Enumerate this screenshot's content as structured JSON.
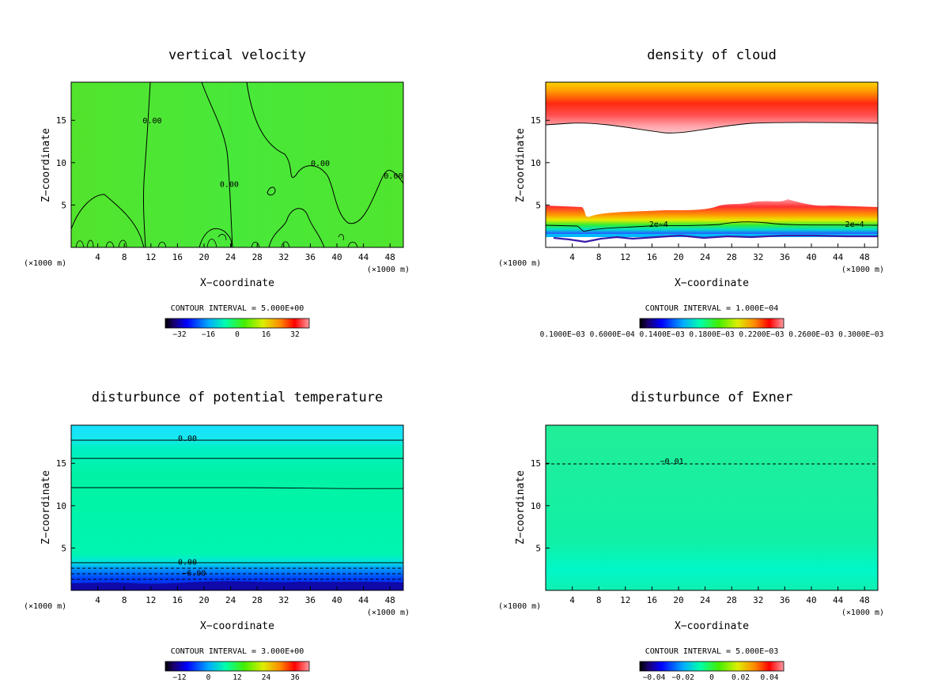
{
  "chart_data": [
    {
      "type": "heatmap",
      "title": "vertical velocity",
      "xlabel": "X−coordinate",
      "ylabel": "Z−coordinate",
      "x_unit_left": "(×1000 m)",
      "x_unit_right": "(×1000 m)",
      "xlim": [
        0,
        50
      ],
      "ylim": [
        0,
        19.5
      ],
      "x_ticks": [
        4,
        8,
        12,
        16,
        20,
        24,
        28,
        32,
        36,
        40,
        44,
        48
      ],
      "y_ticks": [
        5,
        10,
        15
      ],
      "contour_interval_label": "CONTOUR INTERVAL = 5.000E+00",
      "colorbar_labels": [
        "−32",
        "−16",
        "0",
        "16",
        "32"
      ],
      "contour_labels": [
        {
          "text": "0.00",
          "x": 12.2,
          "z": 15
        },
        {
          "text": "0.00",
          "x": 23.8,
          "z": 7.5
        },
        {
          "text": "0.00",
          "x": 37.5,
          "z": 10
        },
        {
          "text": "0.00",
          "x": 48.5,
          "z": 8.5
        }
      ],
      "colormap": "rainbow",
      "fill_color": "#4ee62a"
    },
    {
      "type": "heatmap",
      "title": "density of cloud",
      "xlabel": "X−coordinate",
      "ylabel": "Z−coordinate",
      "x_unit_left": "(×1000 m)",
      "x_unit_right": "(×1000 m)",
      "xlim": [
        0,
        50
      ],
      "ylim": [
        0,
        19.5
      ],
      "x_ticks": [
        4,
        8,
        12,
        16,
        20,
        24,
        28,
        32,
        36,
        40,
        44,
        48
      ],
      "y_ticks": [
        5,
        10,
        15
      ],
      "contour_interval_label": "CONTOUR INTERVAL = 1.000E−04",
      "colorbar_labels": [
        "0.1000E−03 0.6000E−04 0.1400E−03 0.1800E−03 0.2200E−03 0.2600E−03 0.3000E−03"
      ],
      "contour_labels": [
        {
          "text": "2e−4",
          "x": 17,
          "z": 2.8
        },
        {
          "text": "2e−4",
          "x": 46.5,
          "z": 2.8
        }
      ],
      "colormap": "rainbow"
    },
    {
      "type": "heatmap",
      "title": "disturbunce of potential temperature",
      "xlabel": "X−coordinate",
      "ylabel": "Z−coordinate",
      "x_unit_left": "(×1000 m)",
      "x_unit_right": "(×1000 m)",
      "xlim": [
        0,
        50
      ],
      "ylim": [
        0,
        19.5
      ],
      "x_ticks": [
        4,
        8,
        12,
        16,
        20,
        24,
        28,
        32,
        36,
        40,
        44,
        48
      ],
      "y_ticks": [
        5,
        10,
        15
      ],
      "contour_interval_label": "CONTOUR INTERVAL = 3.000E+00",
      "colorbar_labels": [
        "−12",
        "0",
        "12",
        "24",
        "36"
      ],
      "contour_labels": [
        {
          "text": "0.00",
          "x": 17.5,
          "z": 18
        },
        {
          "text": "0.00",
          "x": 17.5,
          "z": 3.4
        },
        {
          "text": "−6.00",
          "x": 18.5,
          "z": 2.1
        }
      ],
      "colormap": "rainbow"
    },
    {
      "type": "heatmap",
      "title": "disturbunce of Exner",
      "xlabel": "X−coordinate",
      "ylabel": "Z−coordinate",
      "x_unit_left": "(×1000 m)",
      "x_unit_right": "(×1000 m)",
      "xlim": [
        0,
        50
      ],
      "ylim": [
        0,
        19.5
      ],
      "x_ticks": [
        4,
        8,
        12,
        16,
        20,
        24,
        28,
        32,
        36,
        40,
        44,
        48
      ],
      "y_ticks": [
        5,
        10,
        15
      ],
      "contour_interval_label": "CONTOUR INTERVAL = 5.000E−03",
      "colorbar_labels": [
        "−0.04",
        "−0.02",
        "0",
        "0.02",
        "0.04"
      ],
      "contour_labels": [
        {
          "text": "−0.01",
          "x": 19,
          "z": 15.3
        }
      ],
      "colormap": "rainbow"
    }
  ]
}
